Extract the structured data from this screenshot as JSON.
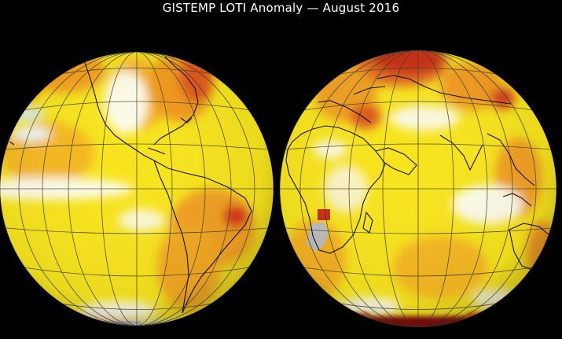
{
  "title": "GISTEMP LOTI Anomaly — August 2016",
  "colors": {
    "background": "#000000",
    "base_yellow": "#f7e41e",
    "warm_orange": "#f4a622",
    "hot_red": "#d4281c",
    "very_hot": "#8b0f0f",
    "neutral_white": "#fbfbf2",
    "cool_blue": "#d6ecf4",
    "no_data": "#bdbdbd",
    "grid": "#2b2b2b",
    "coast": "#101010"
  },
  "globes": [
    {
      "name": "western-hemisphere-globe"
    },
    {
      "name": "eastern-hemisphere-globe"
    }
  ]
}
